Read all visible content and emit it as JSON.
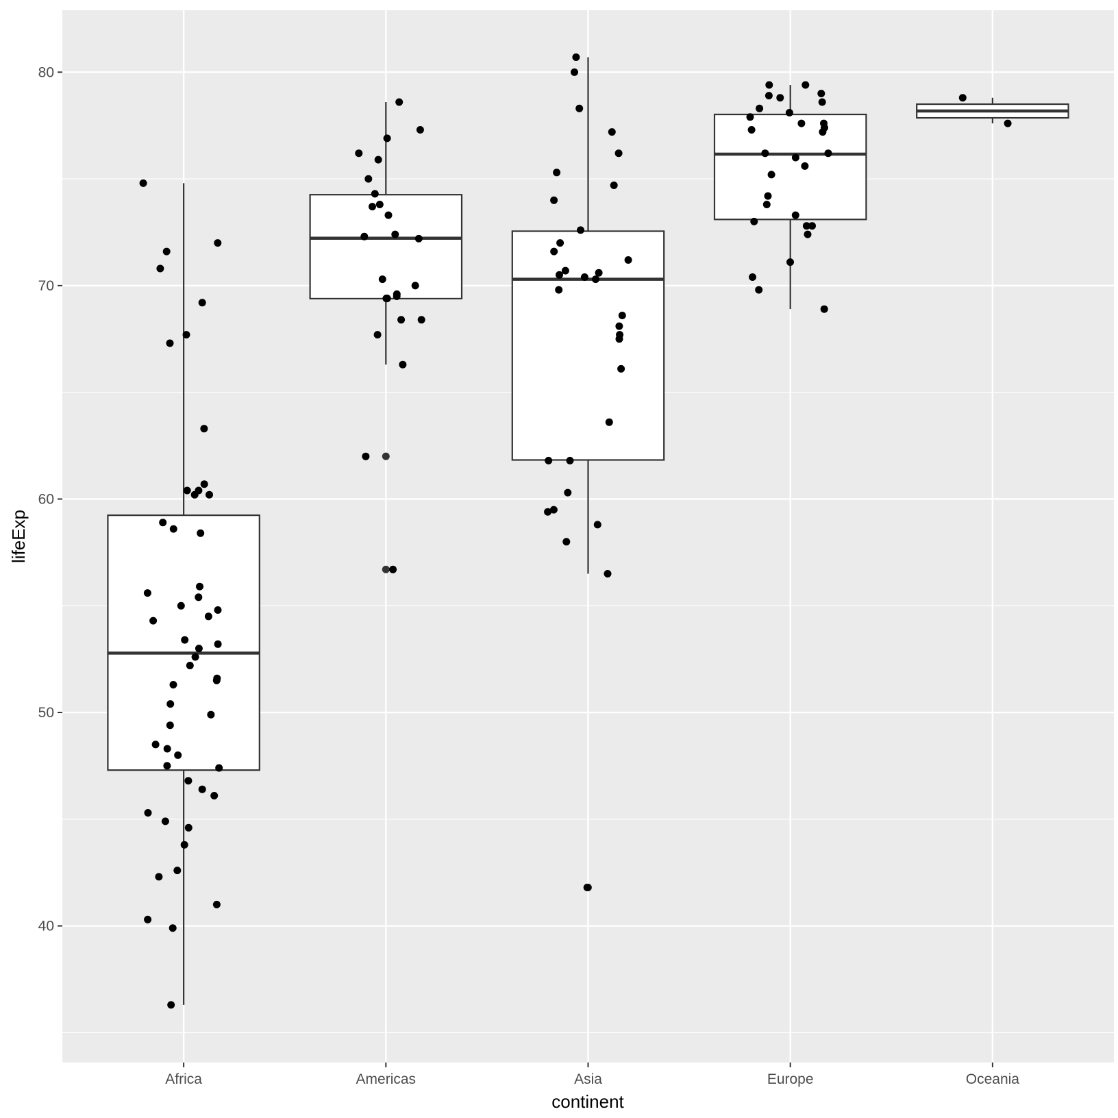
{
  "chart_data": {
    "type": "boxplot",
    "xlabel": "continent",
    "ylabel": "lifeExp",
    "categories": [
      "Africa",
      "Americas",
      "Asia",
      "Europe",
      "Oceania"
    ],
    "ylim": [
      33.6,
      82.9
    ],
    "yticks": [
      40,
      50,
      60,
      70,
      80
    ],
    "grid": true,
    "boxes": [
      {
        "category": "Africa",
        "q1": 47.3,
        "median": 52.78,
        "q3": 59.24,
        "whisker_low": 36.3,
        "whisker_high": 74.8
      },
      {
        "category": "Americas",
        "q1": 69.39,
        "median": 72.22,
        "q3": 74.26,
        "whisker_low": 66.3,
        "whisker_high": 78.6,
        "outliers": [
          62.0,
          56.7
        ]
      },
      {
        "category": "Asia",
        "q1": 61.83,
        "median": 70.3,
        "q3": 72.55,
        "whisker_low": 56.5,
        "whisker_high": 80.7,
        "outliers": [
          41.8
        ]
      },
      {
        "category": "Europe",
        "q1": 73.1,
        "median": 76.16,
        "q3": 78.02,
        "whisker_low": 68.9,
        "whisker_high": 79.4
      },
      {
        "category": "Oceania",
        "q1": 77.86,
        "median": 78.18,
        "q3": 78.5,
        "whisker_low": 77.6,
        "whisker_high": 78.8
      }
    ],
    "points": {
      "Africa": [
        74.8,
        72.0,
        71.6,
        70.8,
        69.2,
        67.7,
        67.3,
        63.3,
        60.7,
        60.4,
        60.4,
        60.2,
        60.2,
        58.9,
        58.6,
        58.4,
        55.9,
        55.6,
        55.4,
        55.0,
        54.8,
        54.5,
        54.3,
        53.4,
        53.2,
        53.0,
        52.6,
        52.2,
        51.6,
        51.5,
        51.3,
        50.4,
        49.9,
        49.4,
        48.5,
        48.3,
        48.0,
        47.5,
        47.4,
        46.8,
        46.4,
        46.1,
        45.3,
        44.9,
        44.6,
        43.8,
        42.6,
        42.3,
        41.0,
        40.3,
        39.9,
        36.3
      ],
      "Americas": [
        78.6,
        77.3,
        76.9,
        76.2,
        75.9,
        75.0,
        74.3,
        73.8,
        73.7,
        73.3,
        72.4,
        72.3,
        72.2,
        70.3,
        70.0,
        69.6,
        69.5,
        69.4,
        69.4,
        68.4,
        68.4,
        67.7,
        66.3,
        62.0,
        56.7
      ],
      "Asia": [
        80.7,
        80.0,
        78.3,
        77.2,
        76.2,
        75.3,
        74.7,
        74.0,
        72.6,
        72.0,
        71.6,
        71.2,
        70.7,
        70.6,
        70.5,
        70.4,
        70.3,
        69.8,
        68.6,
        68.1,
        67.7,
        67.5,
        66.1,
        63.6,
        61.8,
        61.8,
        60.3,
        59.5,
        59.4,
        58.8,
        58.0,
        56.5,
        41.8
      ],
      "Europe": [
        79.4,
        79.4,
        79.0,
        78.9,
        78.8,
        78.6,
        78.3,
        78.1,
        77.9,
        77.6,
        77.6,
        77.4,
        77.3,
        77.2,
        76.2,
        76.2,
        76.0,
        75.6,
        75.2,
        74.2,
        73.8,
        73.3,
        73.0,
        72.8,
        72.8,
        72.4,
        71.1,
        70.4,
        69.8,
        68.9
      ],
      "Oceania": [
        78.8,
        77.6
      ]
    }
  }
}
